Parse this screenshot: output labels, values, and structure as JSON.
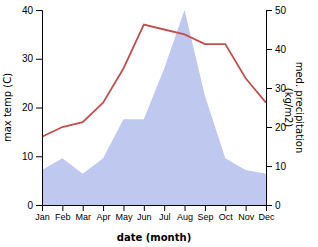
{
  "chart_data": {
    "type": "line",
    "x_label": "date (month)",
    "y_label": "max temp (C)",
    "y2_label": "med. precipitation\n(kg/m2)",
    "categories": [
      "Jan",
      "Feb",
      "Mar",
      "Apr",
      "May",
      "Jun",
      "Jul",
      "Aug",
      "Sep",
      "Oct",
      "Nov",
      "Dec"
    ],
    "series": [
      {
        "type": "area",
        "axis": "y2",
        "color": "#bfc9ef",
        "values": [
          9,
          12,
          8,
          12,
          22,
          22,
          35,
          50,
          28,
          12,
          9,
          8
        ]
      },
      {
        "type": "line",
        "color": "#c0504d",
        "values": [
          14,
          16,
          17,
          21,
          28,
          37,
          36,
          35,
          33,
          33,
          26,
          21
        ]
      }
    ],
    "ylim": [
      0,
      40
    ],
    "yticks": [
      0,
      10,
      20,
      30,
      40
    ],
    "y2lim": [
      0,
      50
    ],
    "y2ticks": [
      0,
      10,
      20,
      30,
      40,
      50
    ],
    "grid": false
  }
}
